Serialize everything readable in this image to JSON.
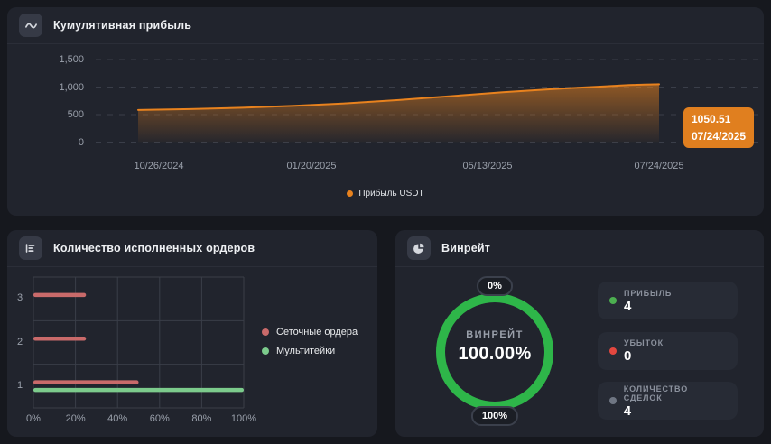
{
  "profit_card": {
    "title": "Кумулятивная прибыль",
    "accent": "#e8821e",
    "y_ticks": [
      "1,500",
      "1,000",
      "500",
      "0"
    ],
    "x_ticks": [
      "10/26/2024",
      "01/20/2025",
      "05/13/2025",
      "07/24/2025"
    ],
    "badge": {
      "value": "1050.51",
      "date": "07/24/2025"
    },
    "legend_label": "Прибыль USDT"
  },
  "orders_card": {
    "title": "Количество исполненных ордеров",
    "categories": [
      "3",
      "2",
      "1"
    ],
    "x_ticks": [
      "0%",
      "20%",
      "40%",
      "60%",
      "80%",
      "100%"
    ],
    "legend": [
      {
        "label": "Сеточные ордера",
        "color": "#c96a6a"
      },
      {
        "label": "Мультитейки",
        "color": "#7ccb8c"
      }
    ]
  },
  "winrate_card": {
    "title": "Винрейт",
    "center_label": "ВИНРЕЙТ",
    "center_value": "100.00%",
    "top_badge": "0%",
    "bottom_badge": "100%",
    "ring_color": "#2eb649",
    "stats": [
      {
        "label": "ПРИБЫЛЬ",
        "value": "4",
        "dot_color": "#4caf50"
      },
      {
        "label": "УБЫТОК",
        "value": "0",
        "dot_color": "#e3473f"
      },
      {
        "label": "КОЛИЧЕСТВО СДЕЛОК",
        "value": "4",
        "dot_color": "#6f7683"
      }
    ]
  },
  "chart_data": [
    {
      "type": "area",
      "title": "Кумулятивная прибыль",
      "xlabel": "",
      "ylabel": "",
      "ylim": [
        0,
        1750
      ],
      "y_ticks": [
        0,
        500,
        1000,
        1500
      ],
      "x_tick_labels": [
        "10/26/2024",
        "01/20/2025",
        "05/13/2025",
        "07/24/2025"
      ],
      "grid": "dashed-horizontal",
      "legend_position": "bottom-center",
      "series": [
        {
          "name": "Прибыль USDT",
          "color": "#e8821e",
          "x_frac": [
            0,
            0.1,
            0.2,
            0.3,
            0.4,
            0.5,
            0.6,
            0.7,
            0.8,
            0.9,
            0.95,
            1
          ],
          "values": [
            585,
            600,
            625,
            660,
            705,
            765,
            835,
            905,
            965,
            1015,
            1038,
            1050.51
          ]
        }
      ],
      "last_point": {
        "value": 1050.51,
        "date": "07/24/2025"
      }
    },
    {
      "type": "bar",
      "orientation": "horizontal",
      "title": "Количество исполненных ордеров",
      "categories": [
        "3",
        "2",
        "1"
      ],
      "xlim": [
        0,
        100
      ],
      "x_ticks": [
        0,
        20,
        40,
        60,
        80,
        100
      ],
      "x_unit": "%",
      "grid": "solid-both",
      "legend_position": "right",
      "series": [
        {
          "name": "Сеточные ордера",
          "color": "#c96a6a",
          "values": [
            25,
            25,
            50
          ]
        },
        {
          "name": "Мультитейки",
          "color": "#7ccb8c",
          "values": [
            0,
            0,
            100
          ]
        }
      ]
    },
    {
      "type": "donut",
      "title": "Винрейт",
      "label": "ВИНРЕЙТ",
      "value": 100.0,
      "min_label": "0%",
      "max_label": "100%",
      "color": "#2eb649",
      "track_color": "#343842"
    }
  ]
}
